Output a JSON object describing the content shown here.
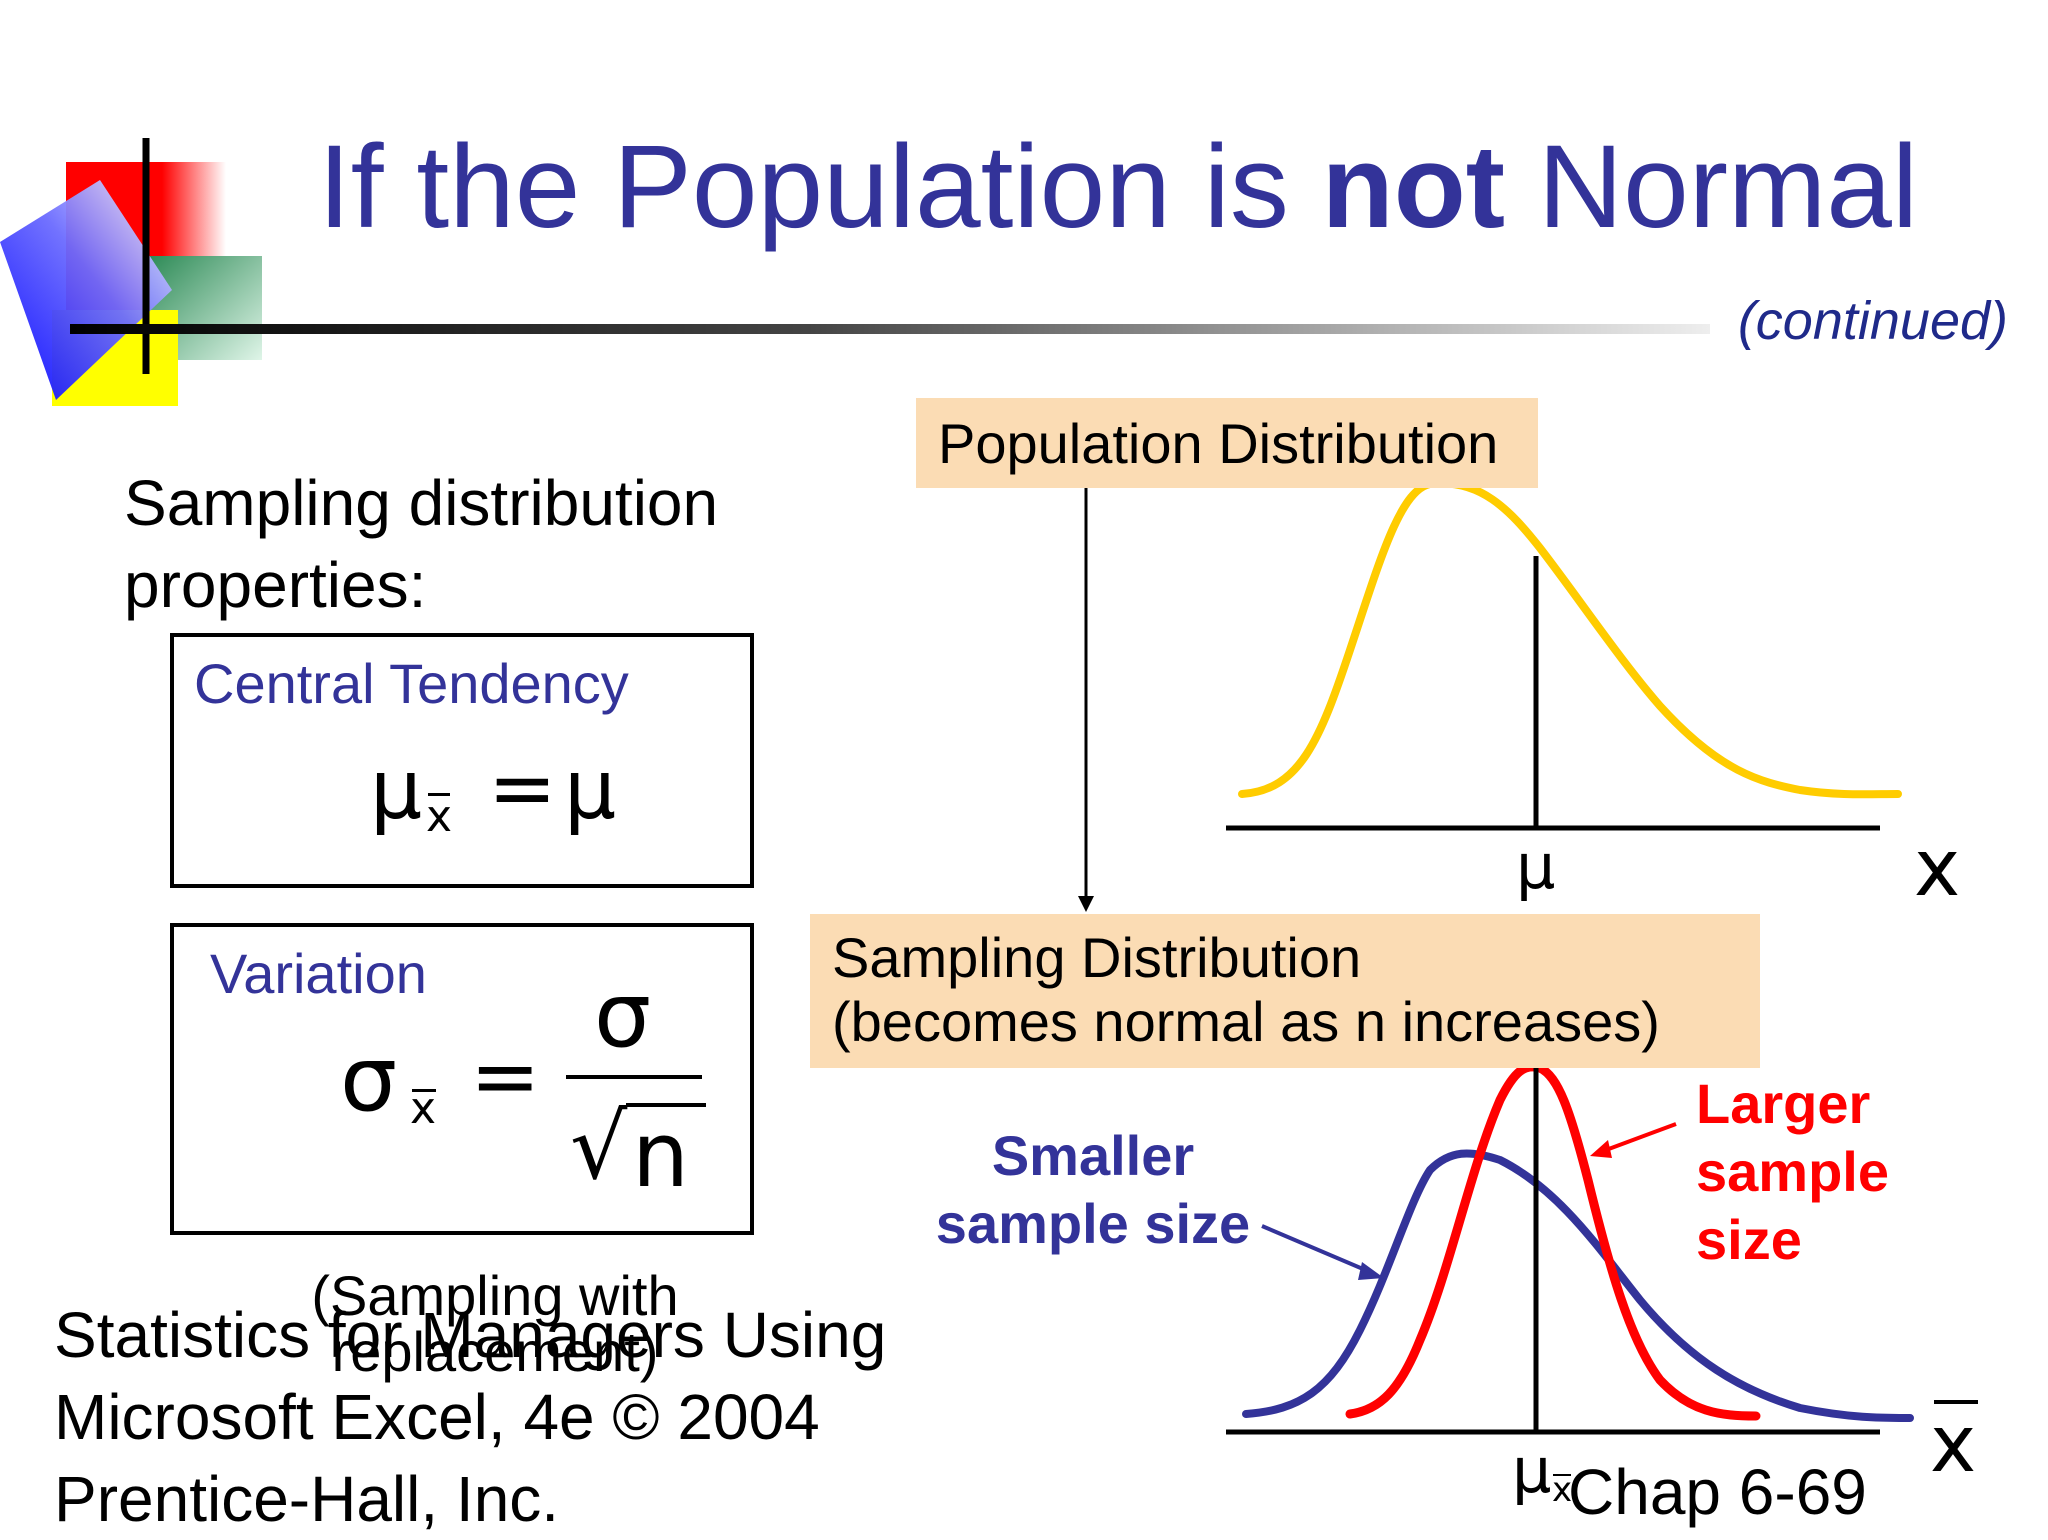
{
  "slide": {
    "title_before": "If the Population is ",
    "title_bold": "not",
    "title_after": " Normal",
    "subtitle": "(continued)",
    "colors": {
      "title": "#333399",
      "population_curve": "#ffcc00",
      "smaller_sample_curve": "#333399",
      "larger_sample_curve": "#ff0000",
      "label_box": "#fbdcb4"
    }
  },
  "left": {
    "properties_heading": "Sampling distribution properties:",
    "central_tendency": {
      "label": "Central Tendency",
      "lhs_symbol": "μ",
      "lhs_subscript": "x",
      "equals": "=",
      "rhs": "μ"
    },
    "variation": {
      "label": "Variation",
      "lhs_symbol": "σ",
      "lhs_subscript": "x",
      "equals": "=",
      "numerator": "σ",
      "root_symbol": "√",
      "denominator": "n"
    },
    "note": "(Sampling with replacement)"
  },
  "right": {
    "population_label": "Population Distribution",
    "population_axis_mean": "μ",
    "population_axis_var": "x",
    "sampling_label_line1": "Sampling Distribution",
    "sampling_label_line2": "(becomes normal as n increases)",
    "smaller_label": "Smaller sample size",
    "larger_label": "Larger sample size",
    "sampling_axis_mean": "μ",
    "sampling_axis_mean_sub": "x",
    "sampling_axis_var": "x"
  },
  "footer": {
    "citation": "Statistics for Managers Using Microsoft Excel, 4e © 2004 Prentice-Hall, Inc.",
    "chapter": "Chap 6-69"
  }
}
